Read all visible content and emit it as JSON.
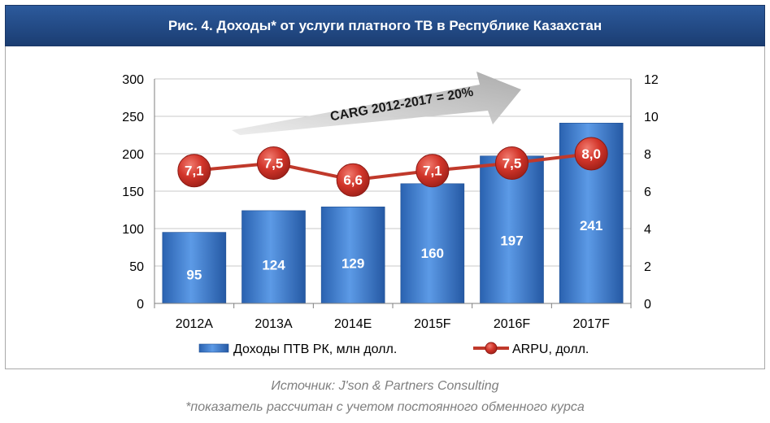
{
  "title": "Рис. 4. Доходы* от услуги платного ТВ в Республике Казахстан",
  "chart_data": {
    "type": "bar",
    "categories": [
      "2012A",
      "2013A",
      "2014E",
      "2015F",
      "2016F",
      "2017F"
    ],
    "series": [
      {
        "name": "Доходы ПТВ РК, млн долл.",
        "type": "bar",
        "axis": "left",
        "values": [
          95,
          124,
          129,
          160,
          197,
          241
        ],
        "labels": [
          "95",
          "124",
          "129",
          "160",
          "197",
          "241"
        ]
      },
      {
        "name": "ARPU, долл.",
        "type": "line",
        "axis": "right",
        "values": [
          7.1,
          7.5,
          6.6,
          7.1,
          7.5,
          8.0
        ],
        "labels": [
          "7,1",
          "7,5",
          "6,6",
          "7,1",
          "7,5",
          "8,0"
        ]
      }
    ],
    "ylim": [
      0,
      300
    ],
    "y_ticks": [
      "0",
      "50",
      "100",
      "150",
      "200",
      "250",
      "300"
    ],
    "y2lim": [
      0,
      12
    ],
    "y2_ticks": [
      "0",
      "2",
      "4",
      "6",
      "8",
      "10",
      "12"
    ],
    "grid": true,
    "legend_position": "bottom",
    "annotation": "CARG 2012-2017 = 20%",
    "colors": {
      "bar": "#3d7fd0",
      "line": "#c0392b",
      "marker": "#c9302c"
    }
  },
  "footer": {
    "source": "Источник: J'son & Partners Consulting",
    "note": "*показатель рассчитан с учетом постоянного обменного курса"
  }
}
